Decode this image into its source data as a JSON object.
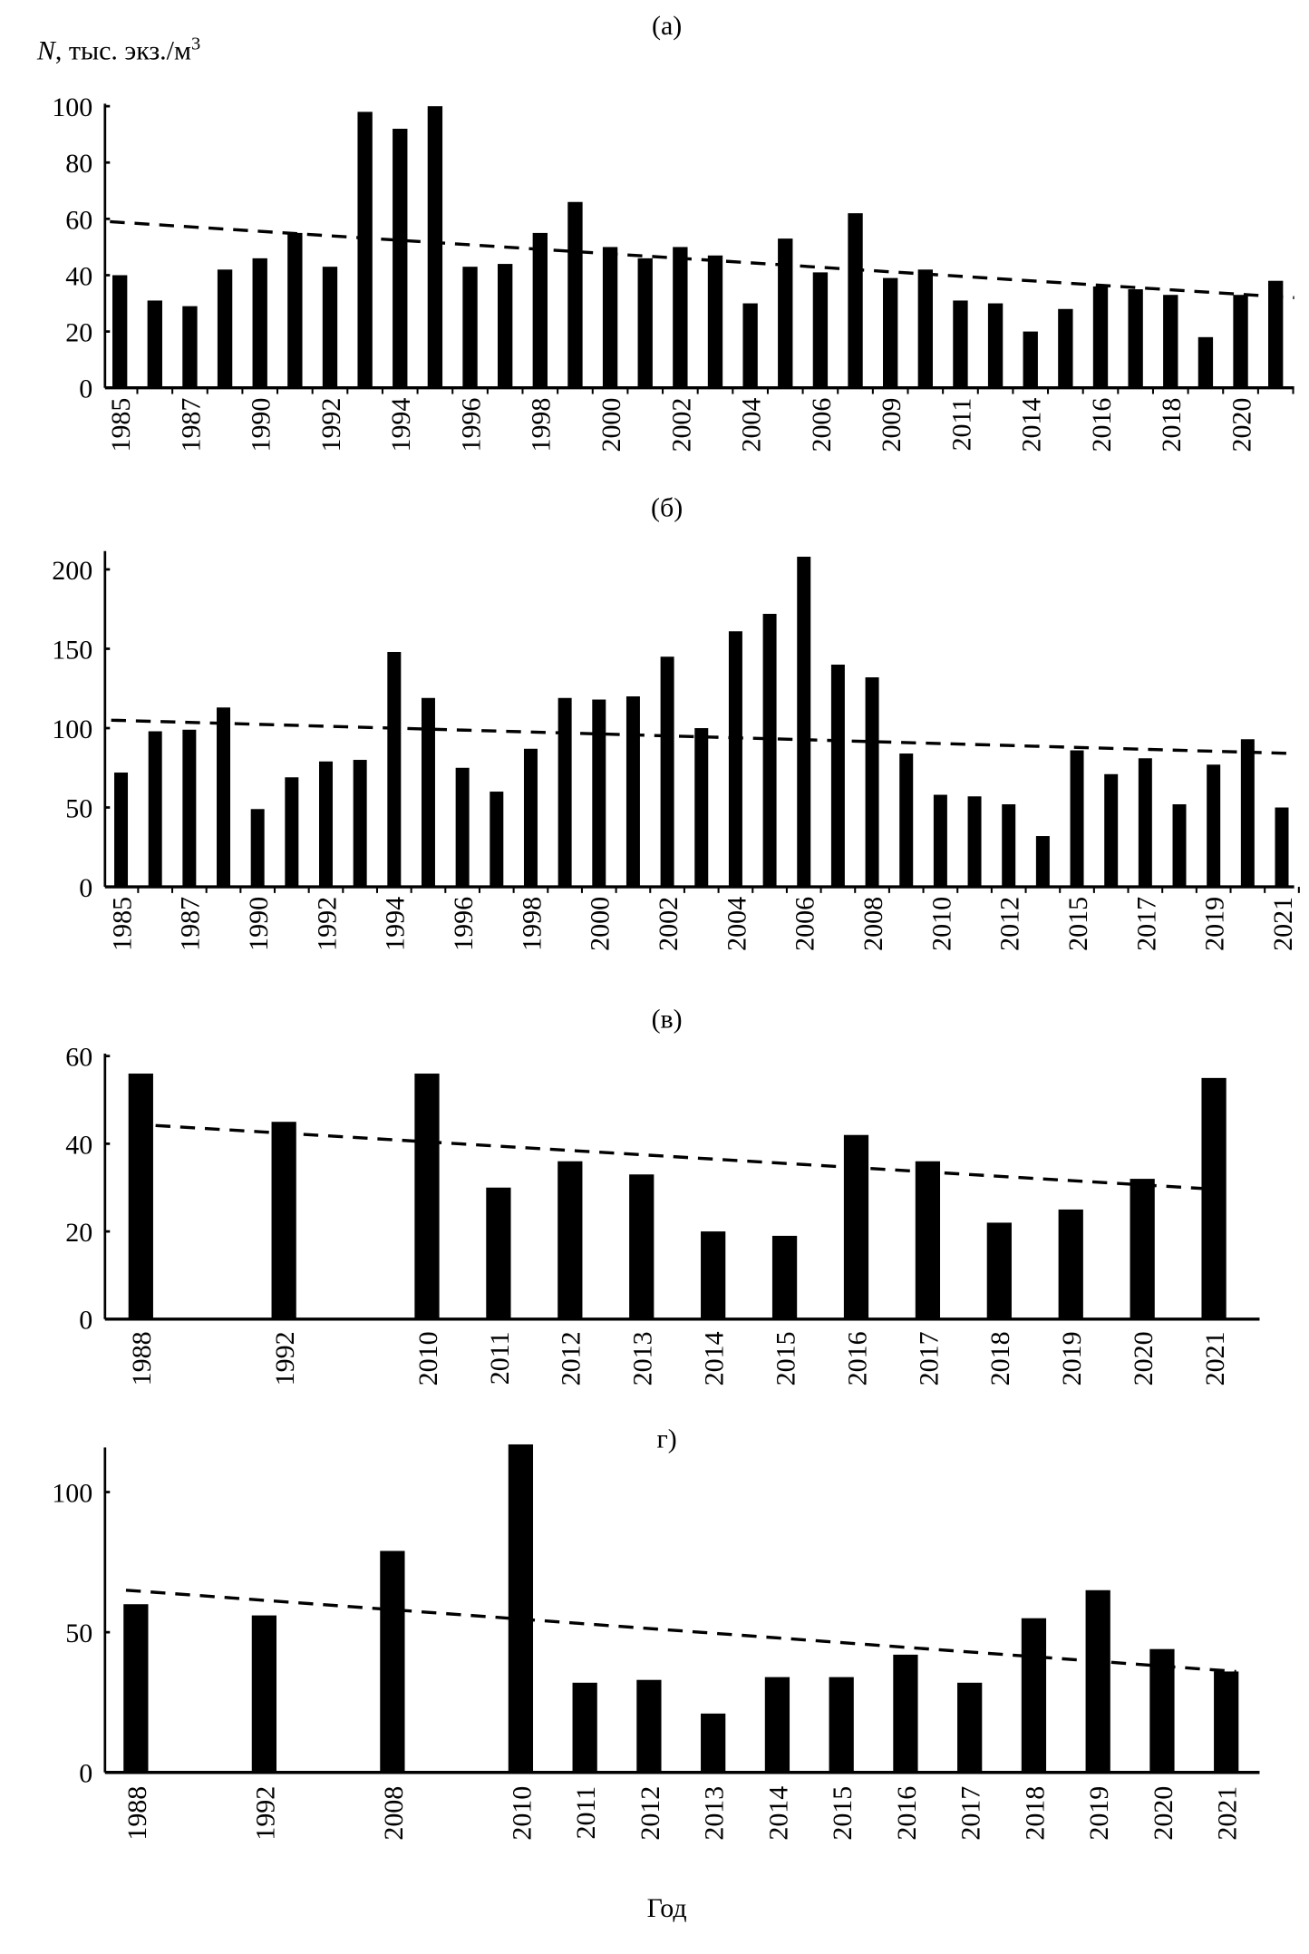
{
  "ylabel_main": "N, тыс. экз./м",
  "ylabel_sup": "3",
  "xlabel": "Год",
  "chart_data": [
    {
      "type": "bar",
      "title": "(а)",
      "ylim": [
        0,
        100
      ],
      "yticks": [
        0,
        20,
        40,
        60,
        80,
        100
      ],
      "categories": [
        "1985",
        "",
        "1987",
        "",
        "1990",
        "",
        "1992",
        "",
        "1994",
        "",
        "1996",
        "",
        "1998",
        "",
        "2000",
        "",
        "2002",
        "",
        "2004",
        "",
        "2006",
        "",
        "2009",
        "",
        "2011",
        "",
        "2014",
        "",
        "2016",
        "",
        "2018",
        "",
        "2020",
        ""
      ],
      "values": [
        40,
        31,
        29,
        42,
        46,
        55,
        43,
        98,
        92,
        100,
        43,
        44,
        55,
        66,
        50,
        46,
        50,
        47,
        30,
        53,
        41,
        62,
        39,
        42,
        31,
        30,
        20,
        28,
        36,
        35,
        33,
        18,
        33,
        38
      ],
      "trend": [
        59,
        32
      ]
    },
    {
      "type": "bar",
      "title": "(б)",
      "ylim": [
        0,
        210
      ],
      "yticks": [
        0,
        50,
        100,
        150,
        200
      ],
      "categories": [
        "1985",
        "",
        "1987",
        "",
        "1990",
        "",
        "1992",
        "",
        "1994",
        "",
        "1996",
        "",
        "1998",
        "",
        "2000",
        "",
        "2002",
        "",
        "2004",
        "",
        "2006",
        "",
        "2008",
        "",
        "2010",
        "",
        "2012",
        "",
        "2015",
        "",
        "2017",
        "",
        "2019",
        "",
        "2021"
      ],
      "values": [
        72,
        98,
        99,
        113,
        49,
        69,
        79,
        80,
        148,
        119,
        75,
        60,
        87,
        119,
        118,
        120,
        145,
        100,
        161,
        172,
        208,
        140,
        132,
        84,
        58,
        57,
        52,
        32,
        86,
        71,
        81,
        52,
        77,
        93,
        50
      ],
      "trend": [
        105,
        84
      ]
    },
    {
      "type": "bar",
      "title": "(в)",
      "ylim": [
        0,
        60
      ],
      "yticks": [
        0,
        20,
        40,
        60
      ],
      "categories": [
        "1988",
        "1992",
        "2010",
        "2011",
        "2012",
        "2013",
        "2014",
        "2015",
        "2016",
        "2017",
        "2018",
        "2019",
        "2020",
        "2021"
      ],
      "values": [
        56,
        45,
        56,
        30,
        36,
        33,
        20,
        19,
        42,
        36,
        22,
        25,
        32,
        55
      ],
      "trend": [
        44.5,
        29.5
      ]
    },
    {
      "type": "bar",
      "title": "г)",
      "ylim": [
        0,
        115
      ],
      "yticks": [
        0,
        50,
        100
      ],
      "categories": [
        "1988",
        "1992",
        "2008",
        "2010",
        "2011",
        "2012",
        "2013",
        "2014",
        "2015",
        "2016",
        "2017",
        "2018",
        "2019",
        "2020",
        "2021"
      ],
      "values": [
        60,
        56,
        79,
        117,
        32,
        33,
        21,
        34,
        34,
        42,
        32,
        55,
        65,
        44,
        36
      ],
      "trend": [
        65,
        36
      ]
    }
  ]
}
